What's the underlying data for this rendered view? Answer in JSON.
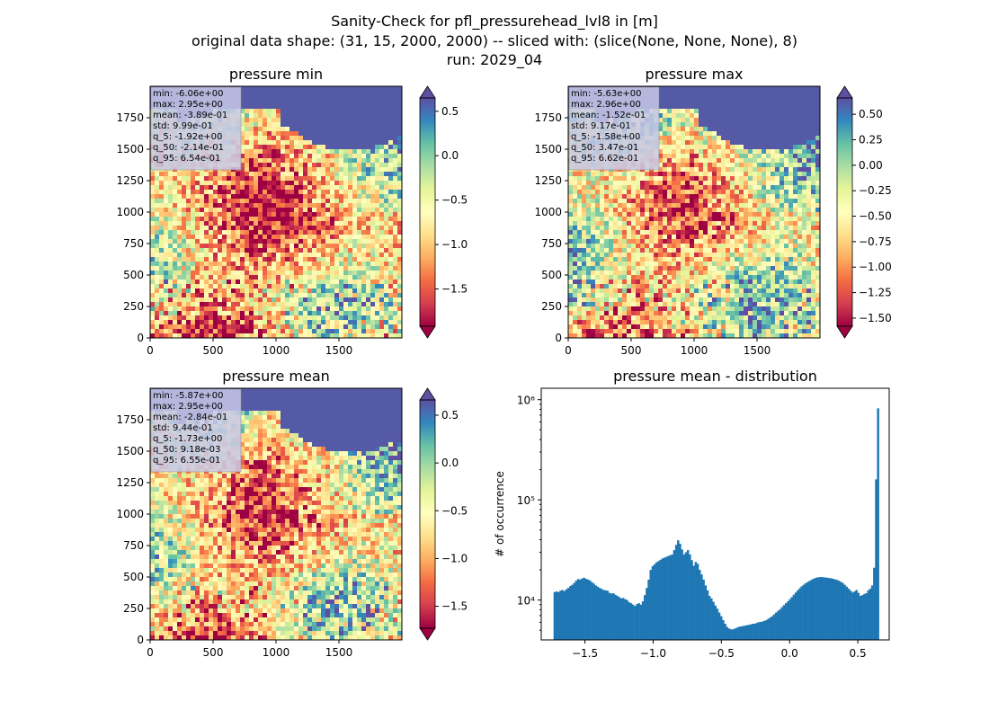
{
  "figure": {
    "title_lines": [
      "Sanity-Check for pfl_pressurehead_lvl8 in [m]",
      "original data shape: (31, 15, 2000, 2000) -- sliced with: (slice(None, None, None), 8)",
      "run: 2029_04"
    ]
  },
  "colors": {
    "colormap": "Spectral",
    "histogram_bar": "#1f77b4",
    "stats_box": "#c8c8e6"
  },
  "chart_data": [
    {
      "type": "heatmap",
      "title": "pressure min",
      "colormap": "Spectral",
      "xlim": [
        0,
        2000
      ],
      "ylim": [
        0,
        2000
      ],
      "x_ticks": [
        0,
        500,
        1000,
        1500
      ],
      "y_ticks": [
        0,
        250,
        500,
        750,
        1000,
        1250,
        1500,
        1750
      ],
      "colorbar": {
        "vmin": -1.92,
        "vmax": 0.65,
        "ticks": [
          0.5,
          0.0,
          -0.5,
          -1.0,
          -1.5
        ],
        "tick_labels": [
          "0.5",
          "0.0",
          "−0.5",
          "−1.0",
          "−1.5"
        ],
        "extend": "both"
      },
      "stats": [
        "min: -6.06e+00",
        "max: 2.95e+00",
        "mean: -3.89e-01",
        "std: 9.99e-01",
        "q_5: -1.92e+00",
        "q_50: -2.14e-01",
        "q_95: 6.54e-01"
      ]
    },
    {
      "type": "heatmap",
      "title": "pressure max",
      "colormap": "Spectral",
      "xlim": [
        0,
        2000
      ],
      "ylim": [
        0,
        2000
      ],
      "x_ticks": [
        0,
        500,
        1000,
        1500
      ],
      "y_ticks": [
        0,
        250,
        500,
        750,
        1000,
        1250,
        1500,
        1750
      ],
      "colorbar": {
        "vmin": -1.58,
        "vmax": 0.66,
        "ticks": [
          0.5,
          0.25,
          0.0,
          -0.25,
          -0.5,
          -0.75,
          -1.0,
          -1.25,
          -1.5
        ],
        "tick_labels": [
          "0.50",
          "0.25",
          "0.00",
          "−0.25",
          "−0.50",
          "−0.75",
          "−1.00",
          "−1.25",
          "−1.50"
        ],
        "extend": "both"
      },
      "stats": [
        "min: -5.63e+00",
        "max: 2.96e+00",
        "mean: -1.52e-01",
        "std: 9.17e-01",
        "q_5: -1.58e+00",
        "q_50: 3.47e-01",
        "q_95: 6.62e-01"
      ]
    },
    {
      "type": "heatmap",
      "title": "pressure mean",
      "colormap": "Spectral",
      "xlim": [
        0,
        2000
      ],
      "ylim": [
        0,
        2000
      ],
      "x_ticks": [
        0,
        500,
        1000,
        1500
      ],
      "y_ticks": [
        0,
        250,
        500,
        750,
        1000,
        1250,
        1500,
        1750
      ],
      "colorbar": {
        "vmin": -1.73,
        "vmax": 0.66,
        "ticks": [
          0.5,
          0.0,
          -0.5,
          -1.0,
          -1.5
        ],
        "tick_labels": [
          "0.5",
          "0.0",
          "−0.5",
          "−1.0",
          "−1.5"
        ],
        "extend": "both"
      },
      "stats": [
        "min: -5.87e+00",
        "max: 2.95e+00",
        "mean: -2.84e-01",
        "std: 9.44e-01",
        "q_5: -1.73e+00",
        "q_50: 9.18e-03",
        "q_95: 6.55e-01"
      ]
    },
    {
      "type": "bar",
      "title": "pressure mean - distribution",
      "ylabel": "# of occurrence",
      "y_scale": "log",
      "xlim": [
        -1.82,
        0.73
      ],
      "ylim": [
        4000,
        1300000
      ],
      "x_ticks": [
        -1.5,
        -1.0,
        -0.5,
        0.0,
        0.5
      ],
      "x_tick_labels": [
        "−1.5",
        "−1.0",
        "−0.5",
        "0.0",
        "0.5"
      ],
      "y_ticks": [
        10000,
        100000,
        1000000
      ],
      "y_tick_labels": [
        "10⁴",
        "10⁵",
        "10⁶"
      ],
      "bin_range": [
        -1.73,
        0.655
      ],
      "counts": [
        12000,
        12200,
        12000,
        12400,
        12600,
        12300,
        12800,
        13200,
        13800,
        14200,
        14800,
        15600,
        16200,
        16000,
        16400,
        16700,
        16300,
        16000,
        15700,
        15100,
        14600,
        14000,
        13600,
        13200,
        12900,
        12600,
        12500,
        12400,
        11800,
        11600,
        11700,
        11300,
        11000,
        10700,
        10400,
        10500,
        10200,
        10000,
        9500,
        9300,
        9000,
        8700,
        9100,
        9300,
        9000,
        9700,
        11200,
        13200,
        16000,
        20000,
        21800,
        22800,
        23800,
        24500,
        25200,
        26000,
        26500,
        27000,
        27500,
        28000,
        28500,
        31500,
        35500,
        39500,
        36500,
        32000,
        28500,
        30000,
        31500,
        28500,
        25000,
        22000,
        24000,
        23000,
        20000,
        18000,
        16000,
        14000,
        12500,
        11000,
        10400,
        9600,
        8800,
        8200,
        7500,
        6900,
        6300,
        5800,
        5400,
        5200,
        5100,
        5100,
        5200,
        5300,
        5400,
        5450,
        5500,
        5550,
        5600,
        5650,
        5700,
        5800,
        5800,
        5900,
        6000,
        6050,
        6100,
        6200,
        6300,
        6500,
        6700,
        6900,
        7200,
        7500,
        7800,
        8100,
        8500,
        8900,
        9300,
        9700,
        10200,
        10700,
        11300,
        11900,
        12500,
        13100,
        13700,
        14200,
        14700,
        15100,
        15500,
        15900,
        16300,
        16600,
        16800,
        16900,
        17000,
        16900,
        16800,
        16700,
        16600,
        16500,
        16300,
        16100,
        15900,
        15600,
        15200,
        14800,
        14200,
        13600,
        13000,
        12400,
        11900,
        12200,
        12600,
        11800,
        11000,
        11200,
        11500,
        11700,
        12500,
        13000,
        14000,
        21000,
        160000,
        820000
      ]
    }
  ]
}
